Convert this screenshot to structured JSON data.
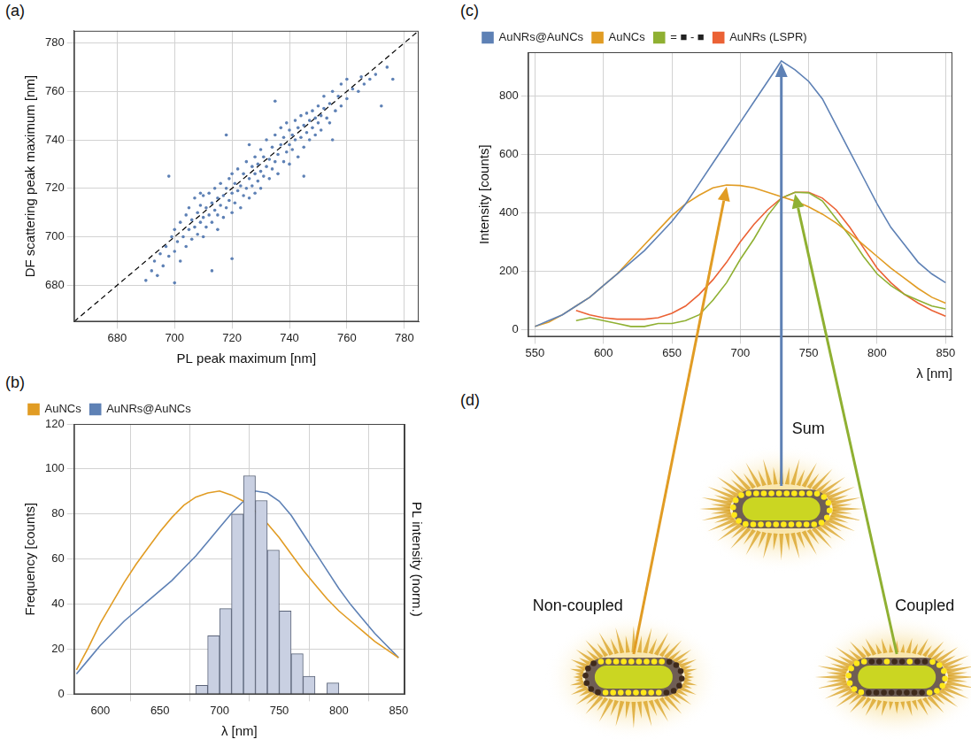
{
  "chart_data": [
    {
      "panel": "(a)",
      "type": "scatter",
      "x_label": "PL peak maximum [nm]",
      "y_label": "DF scattering peak maximum [nm]",
      "xlim": [
        665,
        785
      ],
      "xticks": [
        680,
        700,
        720,
        740,
        760,
        780
      ],
      "ylim": [
        665,
        785
      ],
      "yticks": [
        680,
        700,
        720,
        740,
        760,
        780
      ],
      "grid": true,
      "series": [
        {
          "type": "scatter",
          "color": "#5E81B5",
          "marker": "circle",
          "values": [
            [
              690,
              682
            ],
            [
              692,
              686
            ],
            [
              693,
              690
            ],
            [
              694,
              684
            ],
            [
              695,
              693
            ],
            [
              696,
              688
            ],
            [
              697,
              696
            ],
            [
              698,
              725
            ],
            [
              698,
              692
            ],
            [
              699,
              700
            ],
            [
              700,
              694
            ],
            [
              700,
              703
            ],
            [
              701,
              698
            ],
            [
              702,
              690
            ],
            [
              702,
              706
            ],
            [
              703,
              700
            ],
            [
              704,
              696
            ],
            [
              704,
              709
            ],
            [
              705,
              703
            ],
            [
              705,
              712
            ],
            [
              706,
              699
            ],
            [
              706,
              707
            ],
            [
              707,
              704
            ],
            [
              707,
              716
            ],
            [
              708,
              701
            ],
            [
              708,
              710
            ],
            [
              709,
              706
            ],
            [
              709,
              713
            ],
            [
              710,
              700
            ],
            [
              710,
              708
            ],
            [
              710,
              717
            ],
            [
              711,
              704
            ],
            [
              711,
              712
            ],
            [
              712,
              709
            ],
            [
              712,
              718
            ],
            [
              713,
              686
            ],
            [
              713,
              706
            ],
            [
              713,
              714
            ],
            [
              714,
              711
            ],
            [
              714,
              720
            ],
            [
              715,
              703
            ],
            [
              715,
              709
            ],
            [
              715,
              716
            ],
            [
              716,
              713
            ],
            [
              716,
              722
            ],
            [
              717,
              708
            ],
            [
              717,
              717
            ],
            [
              718,
              712
            ],
            [
              718,
              720
            ],
            [
              718,
              742
            ],
            [
              719,
              715
            ],
            [
              719,
              724
            ],
            [
              720,
              710
            ],
            [
              720,
              718
            ],
            [
              720,
              726
            ],
            [
              721,
              714
            ],
            [
              721,
              722
            ],
            [
              722,
              719
            ],
            [
              722,
              728
            ],
            [
              723,
              712
            ],
            [
              723,
              721
            ],
            [
              724,
              717
            ],
            [
              724,
              726
            ],
            [
              725,
              720
            ],
            [
              725,
              731
            ],
            [
              726,
              716
            ],
            [
              726,
              724
            ],
            [
              726,
              738
            ],
            [
              727,
              721
            ],
            [
              727,
              729
            ],
            [
              728,
              718
            ],
            [
              728,
              726
            ],
            [
              728,
              733
            ],
            [
              729,
              723
            ],
            [
              729,
              730
            ],
            [
              730,
              720
            ],
            [
              730,
              727
            ],
            [
              730,
              736
            ],
            [
              731,
              725
            ],
            [
              731,
              733
            ],
            [
              732,
              729
            ],
            [
              732,
              740
            ],
            [
              733,
              724
            ],
            [
              733,
              732
            ],
            [
              734,
              728
            ],
            [
              734,
              737
            ],
            [
              735,
              731
            ],
            [
              735,
              742
            ],
            [
              736,
              726
            ],
            [
              736,
              734
            ],
            [
              737,
              738
            ],
            [
              737,
              745
            ],
            [
              738,
              731
            ],
            [
              738,
              741
            ],
            [
              739,
              735
            ],
            [
              739,
              747
            ],
            [
              740,
              730
            ],
            [
              740,
              738
            ],
            [
              740,
              744
            ],
            [
              741,
              736
            ],
            [
              741,
              742
            ],
            [
              742,
              740
            ],
            [
              742,
              748
            ],
            [
              743,
              733
            ],
            [
              743,
              745
            ],
            [
              744,
              741
            ],
            [
              744,
              750
            ],
            [
              745,
              737
            ],
            [
              745,
              746
            ],
            [
              746,
              743
            ],
            [
              746,
              751
            ],
            [
              747,
              748
            ],
            [
              747,
              740
            ],
            [
              748,
              745
            ],
            [
              748,
              752
            ],
            [
              749,
              749
            ],
            [
              749,
              742
            ],
            [
              750,
              747
            ],
            [
              750,
              754
            ],
            [
              751,
              750
            ],
            [
              751,
              744
            ],
            [
              752,
              753
            ],
            [
              752,
              758
            ],
            [
              753,
              749
            ],
            [
              754,
              755
            ],
            [
              754,
              747
            ],
            [
              755,
              760
            ],
            [
              756,
              752
            ],
            [
              757,
              758
            ],
            [
              758,
              754
            ],
            [
              758,
              763
            ],
            [
              760,
              757
            ],
            [
              760,
              765
            ],
            [
              762,
              761
            ],
            [
              764,
              760
            ],
            [
              765,
              766
            ],
            [
              766,
              763
            ],
            [
              768,
              765
            ],
            [
              770,
              767
            ],
            [
              772,
              754
            ],
            [
              774,
              770
            ],
            [
              776,
              765
            ],
            [
              720,
              691
            ],
            [
              745,
              725
            ],
            [
              735,
              756
            ],
            [
              700,
              681
            ],
            [
              709,
              718
            ],
            [
              755,
              740
            ]
          ]
        },
        {
          "type": "line",
          "color": "#000000",
          "line_style": "dashed",
          "values": [
            [
              665,
              665
            ],
            [
              785,
              785
            ]
          ]
        }
      ]
    },
    {
      "panel": "(b)",
      "type": "histogram",
      "x_label": "λ [nm]",
      "y_label": "Frequency [counts]",
      "y2_label": "PL intensity (norm.)",
      "bins": [
        680,
        690,
        700,
        710,
        720,
        730,
        740,
        750,
        760,
        770,
        780,
        790,
        800
      ],
      "counts": [
        4,
        26,
        38,
        80,
        97,
        86,
        64,
        37,
        18,
        8,
        0,
        5
      ],
      "color": "#C9D0E2",
      "x": [
        580,
        590,
        600,
        610,
        620,
        630,
        640,
        650,
        660,
        670,
        680,
        690,
        700,
        710,
        720,
        730,
        740,
        750,
        760,
        770,
        780,
        790,
        800,
        810,
        820,
        830,
        840,
        850
      ],
      "series": [
        {
          "name": "AuNCs",
          "color": "#E19C24",
          "axis": "y2",
          "values": [
            0.12,
            0.23,
            0.35,
            0.45,
            0.55,
            0.64,
            0.72,
            0.8,
            0.87,
            0.93,
            0.97,
            0.99,
            1.0,
            0.98,
            0.95,
            0.9,
            0.84,
            0.77,
            0.69,
            0.61,
            0.54,
            0.47,
            0.41,
            0.36,
            0.31,
            0.26,
            0.22,
            0.18
          ]
        },
        {
          "name": "AuNRs@AuNCs",
          "color": "#5E81B5",
          "axis": "y2",
          "values": [
            0.1,
            0.17,
            0.24,
            0.3,
            0.36,
            0.41,
            0.46,
            0.51,
            0.56,
            0.62,
            0.68,
            0.75,
            0.82,
            0.89,
            0.95,
            1.0,
            0.99,
            0.95,
            0.88,
            0.79,
            0.7,
            0.61,
            0.52,
            0.44,
            0.37,
            0.3,
            0.24,
            0.18
          ]
        }
      ],
      "xlim": [
        578,
        855
      ],
      "xticks": [
        600,
        650,
        700,
        750,
        800,
        850
      ],
      "ylim": [
        0,
        120
      ],
      "yticks": [
        0,
        20,
        40,
        60,
        80,
        100,
        120
      ],
      "y2lim": [
        0,
        1.33
      ],
      "y2ticks": [],
      "grid": true,
      "legend": "top"
    },
    {
      "panel": "(c)",
      "type": "line",
      "x_label": "λ [nm]",
      "y_label": "Intensity [counts]",
      "x": [
        550,
        560,
        570,
        580,
        590,
        600,
        610,
        620,
        630,
        640,
        650,
        660,
        670,
        680,
        690,
        700,
        710,
        720,
        730,
        740,
        750,
        760,
        770,
        780,
        790,
        800,
        810,
        820,
        830,
        840,
        850
      ],
      "series": [
        {
          "name": "AuNRs@AuNCs",
          "color": "#5E81B5",
          "values": [
            10,
            30,
            50,
            80,
            110,
            150,
            190,
            230,
            270,
            320,
            370,
            430,
            500,
            570,
            640,
            710,
            780,
            850,
            920,
            890,
            850,
            790,
            700,
            610,
            520,
            430,
            350,
            290,
            230,
            190,
            160
          ]
        },
        {
          "name": "AuNCs",
          "color": "#E19C24",
          "values": [
            10,
            25,
            50,
            80,
            110,
            150,
            190,
            240,
            290,
            340,
            390,
            430,
            460,
            485,
            495,
            493,
            485,
            470,
            455,
            440,
            420,
            395,
            365,
            330,
            290,
            250,
            210,
            175,
            140,
            110,
            90
          ]
        },
        {
          "name": "= ■ - ■",
          "color": "#8FB032",
          "values": [
            null,
            null,
            null,
            30,
            40,
            30,
            20,
            10,
            10,
            20,
            20,
            30,
            50,
            100,
            160,
            240,
            310,
            390,
            450,
            470,
            468,
            440,
            380,
            320,
            250,
            190,
            150,
            120,
            100,
            80,
            70
          ]
        },
        {
          "name": "AuNRs (LSPR)",
          "color": "#EB6235",
          "values": [
            null,
            null,
            null,
            65,
            50,
            40,
            35,
            35,
            35,
            40,
            55,
            80,
            120,
            170,
            230,
            300,
            360,
            410,
            450,
            470,
            470,
            450,
            410,
            350,
            280,
            210,
            160,
            120,
            90,
            65,
            45
          ]
        }
      ],
      "xlim": [
        545,
        855
      ],
      "xticks": [
        550,
        600,
        650,
        700,
        750,
        800,
        850
      ],
      "ylim": [
        -25,
        950
      ],
      "yticks": [
        0,
        200,
        400,
        600,
        800
      ],
      "grid": true,
      "legend": "top"
    }
  ],
  "diagram": {
    "panel": "(d)",
    "labels": [
      "Sum",
      "Non-coupled",
      "Coupled"
    ]
  }
}
